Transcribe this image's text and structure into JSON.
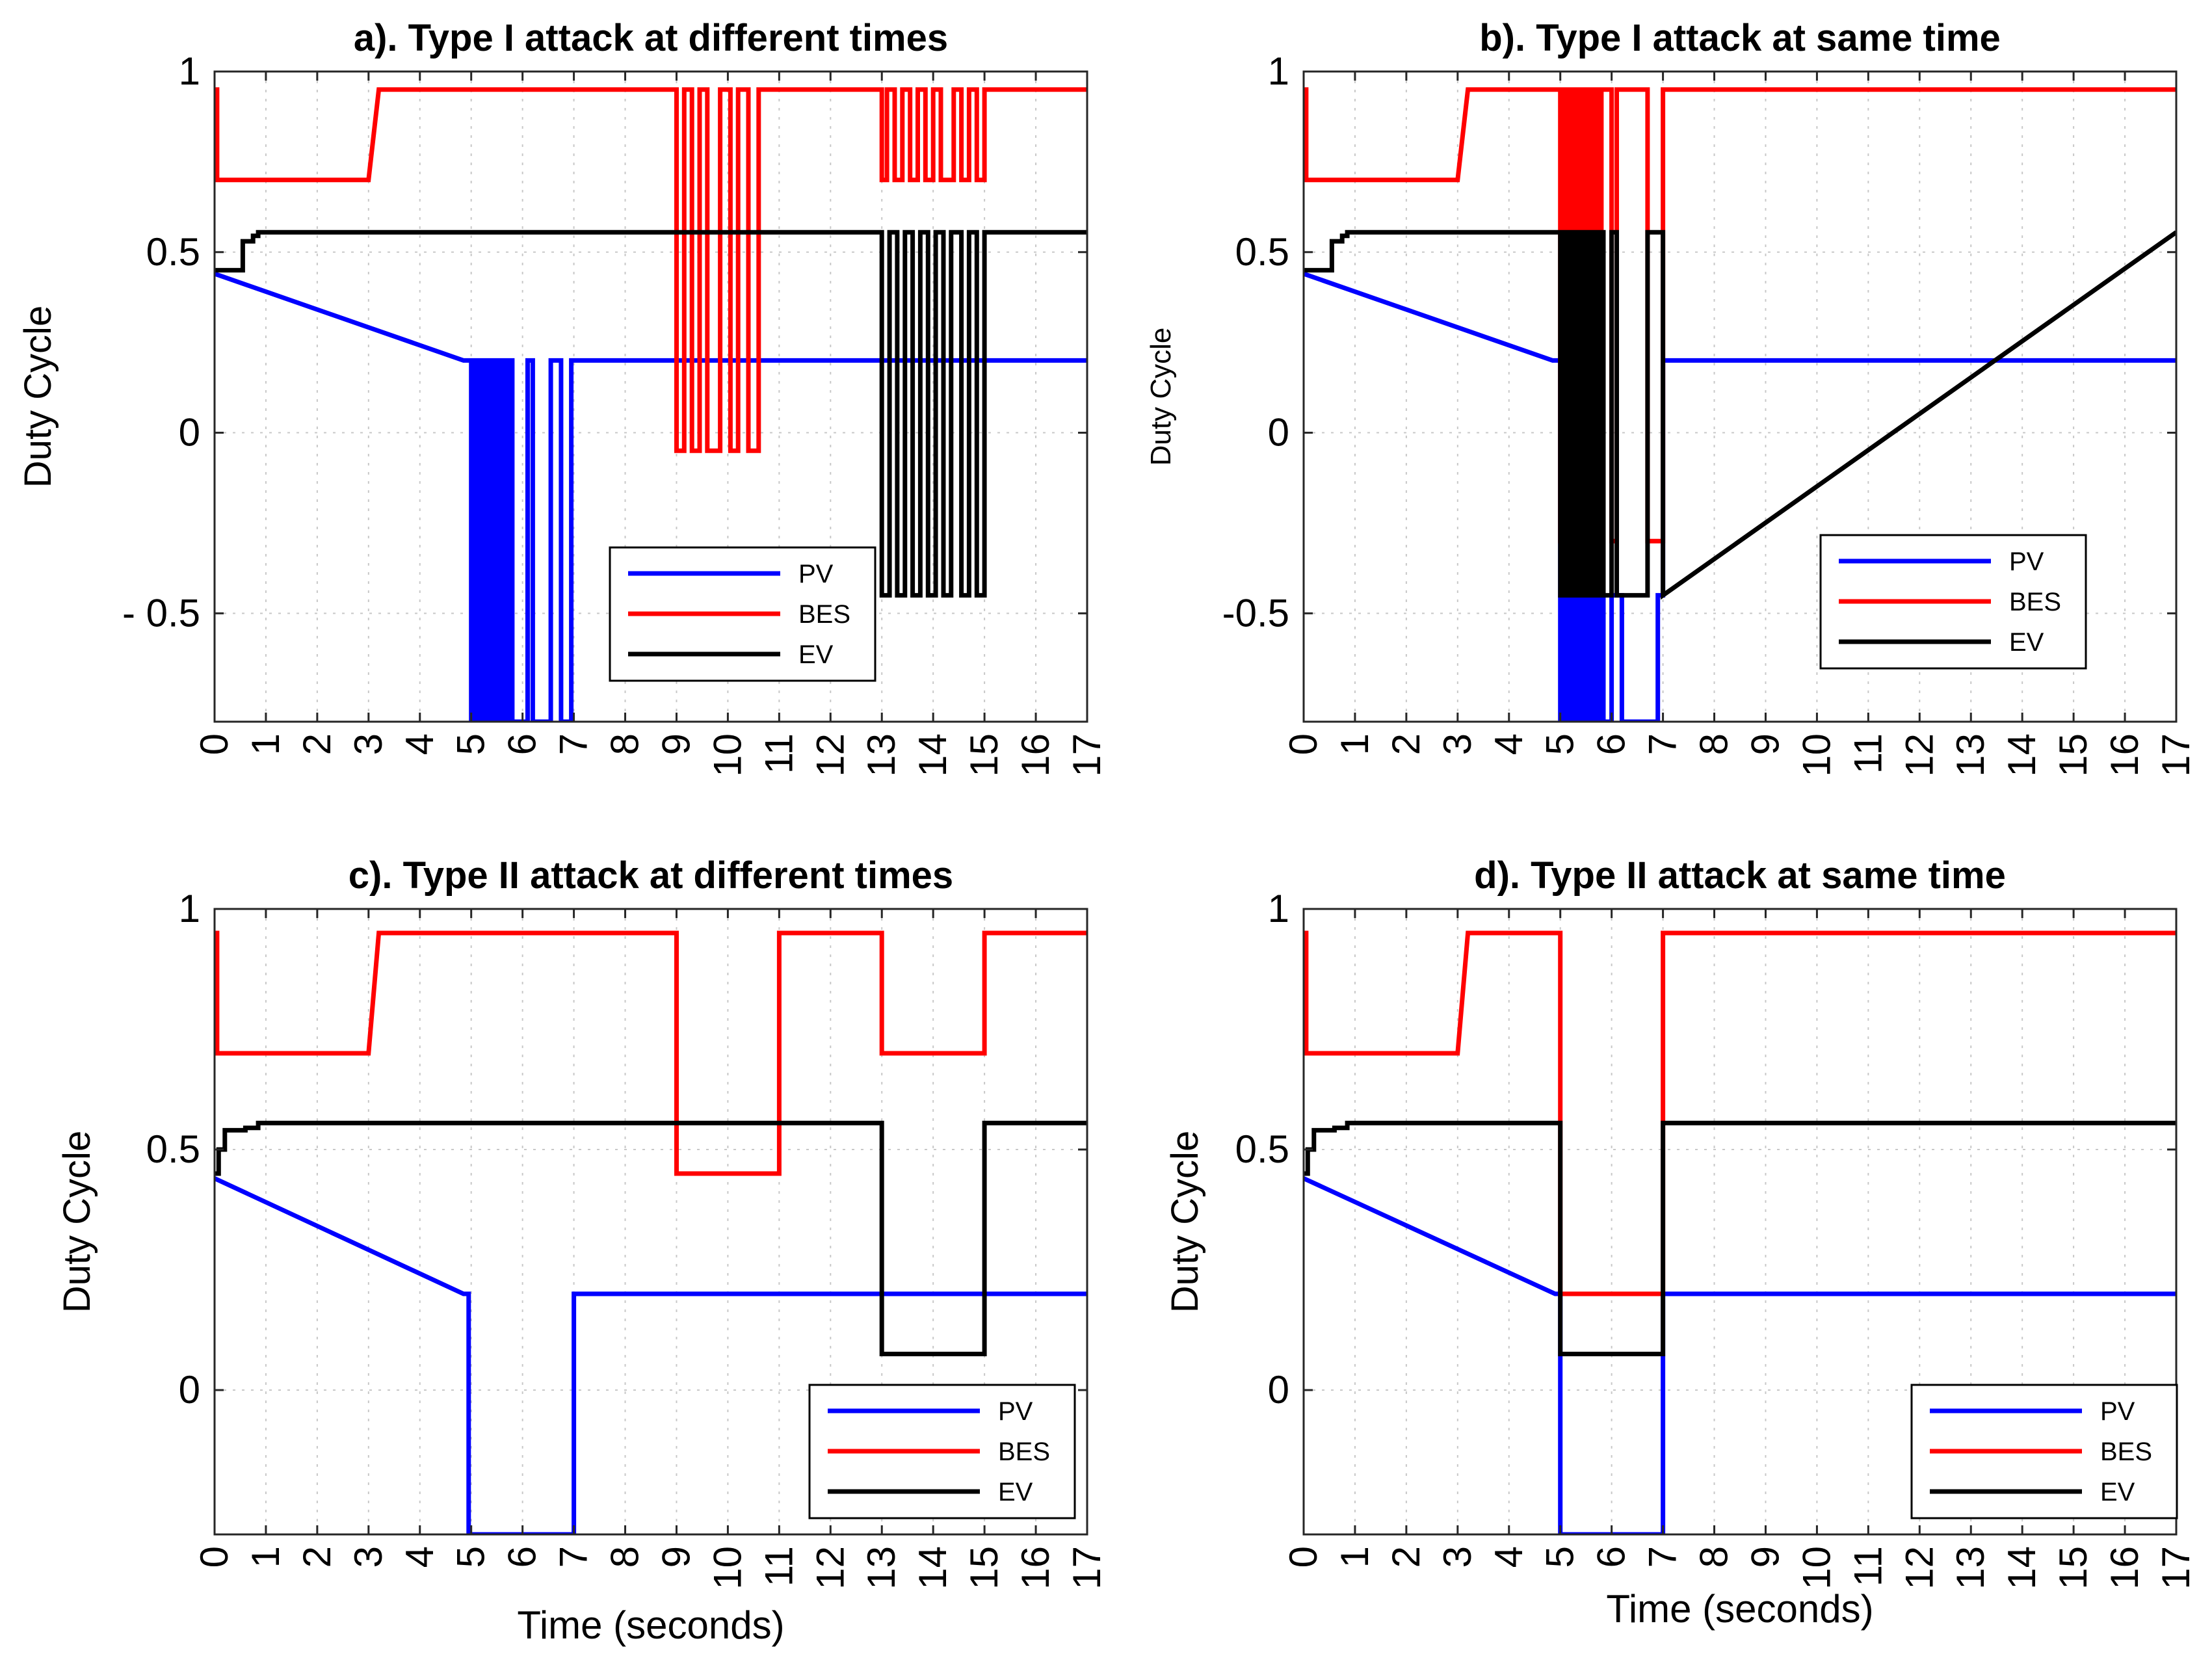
{
  "chart_data": [
    {
      "type": "line",
      "title": "a). Type I attack at different times",
      "xlabel": "",
      "ylabel": "Duty Cycle",
      "xlim": [
        0,
        17
      ],
      "ylim": [
        -0.8,
        1.0
      ],
      "xticks": [
        0,
        1,
        2,
        3,
        4,
        5,
        6,
        7,
        8,
        9,
        10,
        11,
        12,
        13,
        14,
        15,
        16,
        17
      ],
      "yticks": [
        {
          "value": 1,
          "label": "1"
        },
        {
          "value": 0.5,
          "label": "0.5"
        },
        {
          "value": 0,
          "label": "0"
        },
        {
          "value": -0.5,
          "label": "- 0.5"
        }
      ],
      "grid": true,
      "legend": {
        "entries": [
          "PV",
          "BES",
          "EV"
        ],
        "position": "lower-middle"
      },
      "series": [
        {
          "name": "PV",
          "color": "#0000ff",
          "x": [
            0,
            4.85,
            5.0,
            5.0,
            5.08,
            5.08,
            5.16,
            5.16,
            5.24,
            5.24,
            5.32,
            5.32,
            5.4,
            5.4,
            5.48,
            5.48,
            5.56,
            5.56,
            5.64,
            5.64,
            5.72,
            5.72,
            5.8,
            5.8,
            6.1,
            6.1,
            6.2,
            6.2,
            6.55,
            6.55,
            6.75,
            6.75,
            6.95,
            6.95,
            17
          ],
          "y": [
            0.44,
            0.2,
            0.2,
            -0.8,
            -0.8,
            0.2,
            0.2,
            -0.8,
            -0.8,
            0.2,
            0.2,
            -0.8,
            -0.8,
            0.2,
            0.2,
            -0.8,
            -0.8,
            0.2,
            0.2,
            -0.8,
            -0.8,
            0.2,
            0.2,
            -0.8,
            -0.8,
            0.2,
            0.2,
            -0.8,
            -0.8,
            0.2,
            0.2,
            -0.8,
            -0.8,
            0.2,
            0.2
          ]
        },
        {
          "name": "BES",
          "color": "#ff0000",
          "x": [
            0,
            0.05,
            0.05,
            0.1,
            0.1,
            3.0,
            3.2,
            9.0,
            9.0,
            9.15,
            9.15,
            9.3,
            9.3,
            9.45,
            9.45,
            9.6,
            9.6,
            9.85,
            9.85,
            10.05,
            10.05,
            10.2,
            10.2,
            10.4,
            10.4,
            10.6,
            10.6,
            11.0,
            11.0,
            13.0,
            13.0,
            13.1,
            13.1,
            13.25,
            13.25,
            13.4,
            13.4,
            13.55,
            13.55,
            13.7,
            13.7,
            13.85,
            13.85,
            14.0,
            14.0,
            14.15,
            14.15,
            14.4,
            14.4,
            14.55,
            14.55,
            14.7,
            14.7,
            14.85,
            14.85,
            15.0,
            15.0,
            17
          ],
          "y": [
            0.95,
            0.95,
            0.7,
            0.7,
            0.7,
            0.7,
            0.95,
            0.95,
            -0.05,
            -0.05,
            0.95,
            0.95,
            -0.05,
            -0.05,
            0.95,
            0.95,
            -0.05,
            -0.05,
            0.95,
            0.95,
            -0.05,
            -0.05,
            0.95,
            0.95,
            -0.05,
            -0.05,
            0.95,
            0.95,
            0.95,
            0.95,
            0.7,
            0.7,
            0.95,
            0.95,
            0.7,
            0.7,
            0.95,
            0.95,
            0.7,
            0.7,
            0.95,
            0.95,
            0.7,
            0.7,
            0.95,
            0.95,
            0.7,
            0.7,
            0.95,
            0.95,
            0.7,
            0.7,
            0.95,
            0.95,
            0.7,
            0.7,
            0.95,
            0.95
          ]
        },
        {
          "name": "EV",
          "color": "#000000",
          "x": [
            0,
            0.55,
            0.55,
            0.75,
            0.75,
            0.85,
            0.85,
            13.0,
            13.0,
            13.15,
            13.15,
            13.3,
            13.3,
            13.45,
            13.45,
            13.6,
            13.6,
            13.75,
            13.75,
            13.9,
            13.9,
            14.05,
            14.05,
            14.2,
            14.2,
            14.35,
            14.35,
            14.55,
            14.55,
            14.7,
            14.7,
            14.85,
            14.85,
            15.0,
            15.0,
            17
          ],
          "y": [
            0.45,
            0.45,
            0.53,
            0.53,
            0.545,
            0.545,
            0.555,
            0.555,
            -0.45,
            -0.45,
            0.555,
            0.555,
            -0.45,
            -0.45,
            0.555,
            0.555,
            -0.45,
            -0.45,
            0.555,
            0.555,
            -0.45,
            -0.45,
            0.555,
            0.555,
            -0.45,
            -0.45,
            0.555,
            0.555,
            -0.45,
            -0.45,
            0.555,
            0.555,
            -0.45,
            -0.45,
            0.555,
            0.555
          ]
        }
      ]
    },
    {
      "type": "line",
      "title": "b). Type I attack at same time",
      "xlabel": "",
      "ylabel": "Duty Cycle",
      "xlim": [
        0,
        17
      ],
      "ylim": [
        -0.8,
        1.0
      ],
      "xticks": [
        0,
        1,
        2,
        3,
        4,
        5,
        6,
        7,
        8,
        9,
        10,
        11,
        12,
        13,
        14,
        15,
        16,
        17
      ],
      "yticks": [
        {
          "value": 1,
          "label": "1"
        },
        {
          "value": 0.5,
          "label": "0.5"
        },
        {
          "value": 0,
          "label": "0"
        },
        {
          "value": -0.5,
          "label": "-0.5"
        }
      ],
      "grid": true,
      "legend": {
        "entries": [
          "PV",
          "BES",
          "EV"
        ],
        "position": "lower-right"
      },
      "series": [
        {
          "name": "PV",
          "color": "#0000ff",
          "x": [
            0,
            4.85,
            5.0,
            5.0,
            5.06,
            5.06,
            5.12,
            5.12,
            5.18,
            5.18,
            5.24,
            5.24,
            5.3,
            5.3,
            5.36,
            5.36,
            5.42,
            5.42,
            5.48,
            5.48,
            5.54,
            5.54,
            5.6,
            5.6,
            5.66,
            5.66,
            5.72,
            5.72,
            5.78,
            5.78,
            5.84,
            5.84,
            6.0,
            6.0,
            6.2,
            6.2,
            6.9,
            6.9,
            7.0,
            7.0,
            17
          ],
          "y": [
            0.44,
            0.2,
            0.2,
            -0.8,
            -0.8,
            -0.45,
            -0.45,
            -0.8,
            -0.8,
            -0.45,
            -0.45,
            -0.8,
            -0.8,
            -0.45,
            -0.45,
            -0.8,
            -0.8,
            -0.45,
            -0.45,
            -0.8,
            -0.8,
            -0.45,
            -0.45,
            -0.8,
            -0.8,
            -0.45,
            -0.45,
            -0.8,
            -0.8,
            -0.45,
            -0.45,
            -0.8,
            -0.8,
            -0.45,
            -0.45,
            -0.8,
            -0.8,
            -0.45,
            -0.45,
            0.2,
            0.2
          ]
        },
        {
          "name": "BES",
          "color": "#ff0000",
          "x": [
            0,
            0.05,
            0.05,
            0.1,
            0.1,
            3.0,
            3.2,
            5.0,
            5.0,
            5.06,
            5.06,
            5.12,
            5.12,
            5.18,
            5.18,
            5.24,
            5.24,
            5.3,
            5.3,
            5.36,
            5.36,
            5.42,
            5.42,
            5.48,
            5.48,
            5.54,
            5.54,
            5.6,
            5.6,
            5.66,
            5.66,
            5.72,
            5.72,
            5.8,
            5.8,
            6.0,
            6.0,
            6.1,
            6.1,
            6.7,
            6.7,
            7.0,
            7.0,
            17
          ],
          "y": [
            0.95,
            0.95,
            0.7,
            0.7,
            0.7,
            0.7,
            0.95,
            0.95,
            -0.3,
            -0.3,
            0.95,
            0.95,
            -0.3,
            -0.3,
            0.95,
            0.95,
            -0.3,
            -0.3,
            0.95,
            0.95,
            -0.3,
            -0.3,
            0.95,
            0.95,
            -0.3,
            -0.3,
            0.95,
            0.95,
            -0.3,
            -0.3,
            0.95,
            0.95,
            -0.3,
            -0.3,
            0.95,
            0.95,
            -0.3,
            -0.3,
            0.95,
            0.95,
            -0.3,
            -0.3,
            0.95,
            0.95
          ]
        },
        {
          "name": "EV",
          "color": "#000000",
          "x": [
            0,
            0.55,
            0.55,
            0.75,
            0.75,
            0.85,
            0.85,
            5.0,
            5.0,
            5.06,
            5.06,
            5.12,
            5.12,
            5.18,
            5.18,
            5.24,
            5.24,
            5.3,
            5.3,
            5.36,
            5.36,
            5.42,
            5.42,
            5.48,
            5.48,
            5.54,
            5.54,
            5.6,
            5.6,
            5.66,
            5.66,
            5.72,
            5.72,
            5.78,
            5.78,
            5.84,
            5.84,
            6.0,
            6.0,
            6.1,
            6.1,
            6.7,
            6.7,
            7.0,
            7.0,
            17
          ],
          "y": [
            0.45,
            0.45,
            0.53,
            0.53,
            0.545,
            0.545,
            0.555,
            0.555,
            -0.45,
            -0.45,
            0.555,
            0.555,
            -0.45,
            -0.45,
            0.555,
            0.555,
            -0.45,
            -0.45,
            0.555,
            0.555,
            -0.45,
            -0.45,
            0.555,
            0.555,
            -0.45,
            -0.45,
            0.555,
            0.555,
            -0.45,
            -0.45,
            0.555,
            0.555,
            -0.45,
            -0.45,
            0.555,
            0.555,
            -0.45,
            -0.45,
            0.555,
            0.555,
            -0.45,
            -0.45,
            0.555,
            0.555,
            -0.45,
            0.555
          ]
        }
      ]
    },
    {
      "type": "line",
      "title": "c).  Type II attack at different times",
      "xlabel": "Time (seconds)",
      "ylabel": "Duty Cycle",
      "xlim": [
        0,
        17
      ],
      "ylim": [
        -0.3,
        1.0
      ],
      "xticks": [
        0,
        1,
        2,
        3,
        4,
        5,
        6,
        7,
        8,
        9,
        10,
        11,
        12,
        13,
        14,
        15,
        16,
        17
      ],
      "yticks": [
        {
          "value": 1,
          "label": "1"
        },
        {
          "value": 0.5,
          "label": "0.5"
        },
        {
          "value": 0,
          "label": "0"
        }
      ],
      "grid": true,
      "legend": {
        "entries": [
          "PV",
          "BES",
          "EV"
        ],
        "position": "lower-right"
      },
      "series": [
        {
          "name": "PV",
          "color": "#0000ff",
          "x": [
            0,
            4.85,
            4.95,
            4.95,
            7.0,
            7.0,
            17
          ],
          "y": [
            0.44,
            0.2,
            0.2,
            -0.3,
            -0.3,
            0.2,
            0.2
          ]
        },
        {
          "name": "BES",
          "color": "#ff0000",
          "x": [
            0,
            0.05,
            0.05,
            3.0,
            3.2,
            9.0,
            9.0,
            11.0,
            11.0,
            13.0,
            13.0,
            15.0,
            15.0,
            17
          ],
          "y": [
            0.95,
            0.95,
            0.7,
            0.7,
            0.95,
            0.95,
            0.45,
            0.45,
            0.95,
            0.95,
            0.7,
            0.7,
            0.95,
            0.95
          ]
        },
        {
          "name": "EV",
          "color": "#000000",
          "x": [
            0,
            0.08,
            0.08,
            0.2,
            0.2,
            0.6,
            0.6,
            0.85,
            0.85,
            13.0,
            13.0,
            15.0,
            15.0,
            17
          ],
          "y": [
            0.45,
            0.45,
            0.5,
            0.5,
            0.54,
            0.54,
            0.545,
            0.545,
            0.555,
            0.555,
            0.075,
            0.075,
            0.555,
            0.555
          ]
        }
      ]
    },
    {
      "type": "line",
      "title": "d).  Type II attack at same time",
      "xlabel": "Time (seconds)",
      "ylabel": "Duty Cycle",
      "xlim": [
        0,
        17
      ],
      "ylim": [
        -0.3,
        1.0
      ],
      "xticks": [
        0,
        1,
        2,
        3,
        4,
        5,
        6,
        7,
        8,
        9,
        10,
        11,
        12,
        13,
        14,
        15,
        16,
        17
      ],
      "yticks": [
        {
          "value": 1,
          "label": "1"
        },
        {
          "value": 0.5,
          "label": "0.5"
        },
        {
          "value": 0,
          "label": "0"
        }
      ],
      "grid": true,
      "legend": {
        "entries": [
          "PV",
          "BES",
          "EV"
        ],
        "position": "lower-right"
      },
      "series": [
        {
          "name": "PV",
          "color": "#0000ff",
          "x": [
            0,
            4.9,
            5.0,
            5.0,
            7.0,
            7.0,
            17
          ],
          "y": [
            0.44,
            0.2,
            0.2,
            -0.3,
            -0.3,
            0.2,
            0.2
          ]
        },
        {
          "name": "BES",
          "color": "#ff0000",
          "x": [
            0,
            0.05,
            0.05,
            3.0,
            3.2,
            5.0,
            5.0,
            7.0,
            7.0,
            17
          ],
          "y": [
            0.95,
            0.95,
            0.7,
            0.7,
            0.95,
            0.95,
            0.2,
            0.2,
            0.95,
            0.95
          ]
        },
        {
          "name": "EV",
          "color": "#000000",
          "x": [
            0,
            0.08,
            0.08,
            0.2,
            0.2,
            0.6,
            0.6,
            0.85,
            0.85,
            5.0,
            5.0,
            7.0,
            7.0,
            17
          ],
          "y": [
            0.45,
            0.45,
            0.5,
            0.5,
            0.54,
            0.54,
            0.545,
            0.545,
            0.555,
            0.555,
            0.075,
            0.075,
            0.555,
            0.555
          ]
        }
      ]
    }
  ]
}
